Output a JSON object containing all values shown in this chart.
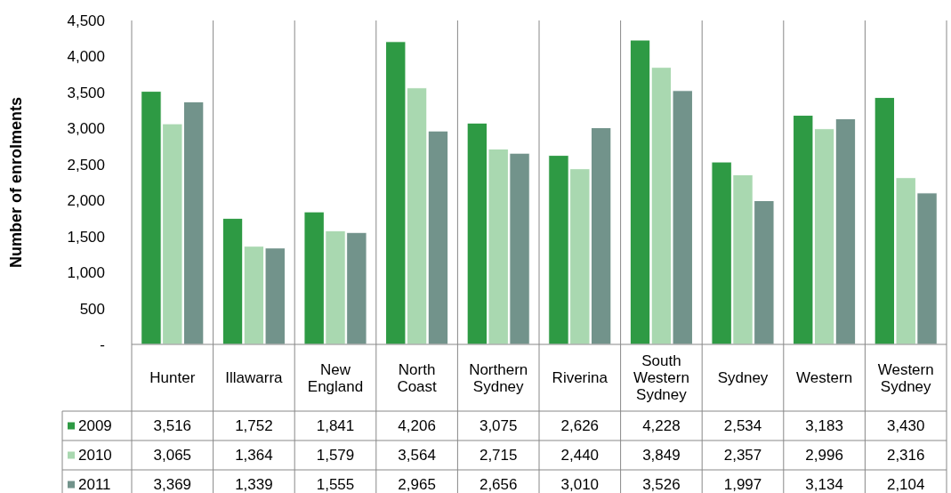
{
  "chart_data": {
    "type": "bar",
    "ylabel": "Number of enrolments",
    "categories": [
      "Hunter",
      "Illawarra",
      "New England",
      "North Coast",
      "Northern Sydney",
      "Riverina",
      "South Western Sydney",
      "Sydney",
      "Western",
      "Western Sydney"
    ],
    "series": [
      {
        "name": "2009",
        "color": "#2e9a44",
        "values": [
          3516,
          1752,
          1841,
          4206,
          3075,
          2626,
          4228,
          2534,
          3183,
          3430
        ],
        "value_labels": [
          "3,516",
          "1,752",
          "1,841",
          "4,206",
          "3,075",
          "2,626",
          "4,228",
          "2,534",
          "3,183",
          "3,430"
        ]
      },
      {
        "name": "2010",
        "color": "#a9d8b0",
        "values": [
          3065,
          1364,
          1579,
          3564,
          2715,
          2440,
          3849,
          2357,
          2996,
          2316
        ],
        "value_labels": [
          "3,065",
          "1,364",
          "1,579",
          "3,564",
          "2,715",
          "2,440",
          "3,849",
          "2,357",
          "2,996",
          "2,316"
        ]
      },
      {
        "name": "2011",
        "color": "#72938b",
        "values": [
          3369,
          1339,
          1555,
          2965,
          2656,
          3010,
          3526,
          1997,
          3134,
          2104
        ],
        "value_labels": [
          "3,369",
          "1,339",
          "1,555",
          "2,965",
          "2,656",
          "3,010",
          "3,526",
          "1,997",
          "3,134",
          "2,104"
        ]
      }
    ],
    "ylim": [
      0,
      4500
    ],
    "yticks": [
      {
        "value": 0,
        "label": "-"
      },
      500,
      {
        "value": 1000,
        "label": "1,000"
      },
      {
        "value": 1500,
        "label": "1,500"
      },
      {
        "value": 2000,
        "label": "2,000"
      },
      {
        "value": 2500,
        "label": "2,500"
      },
      {
        "value": 3000,
        "label": "3,000"
      },
      {
        "value": 3500,
        "label": "3,500"
      },
      {
        "value": 4000,
        "label": "4,000"
      },
      {
        "value": 4500,
        "label": "4,500"
      }
    ],
    "grid": false,
    "legend": "bottom"
  }
}
